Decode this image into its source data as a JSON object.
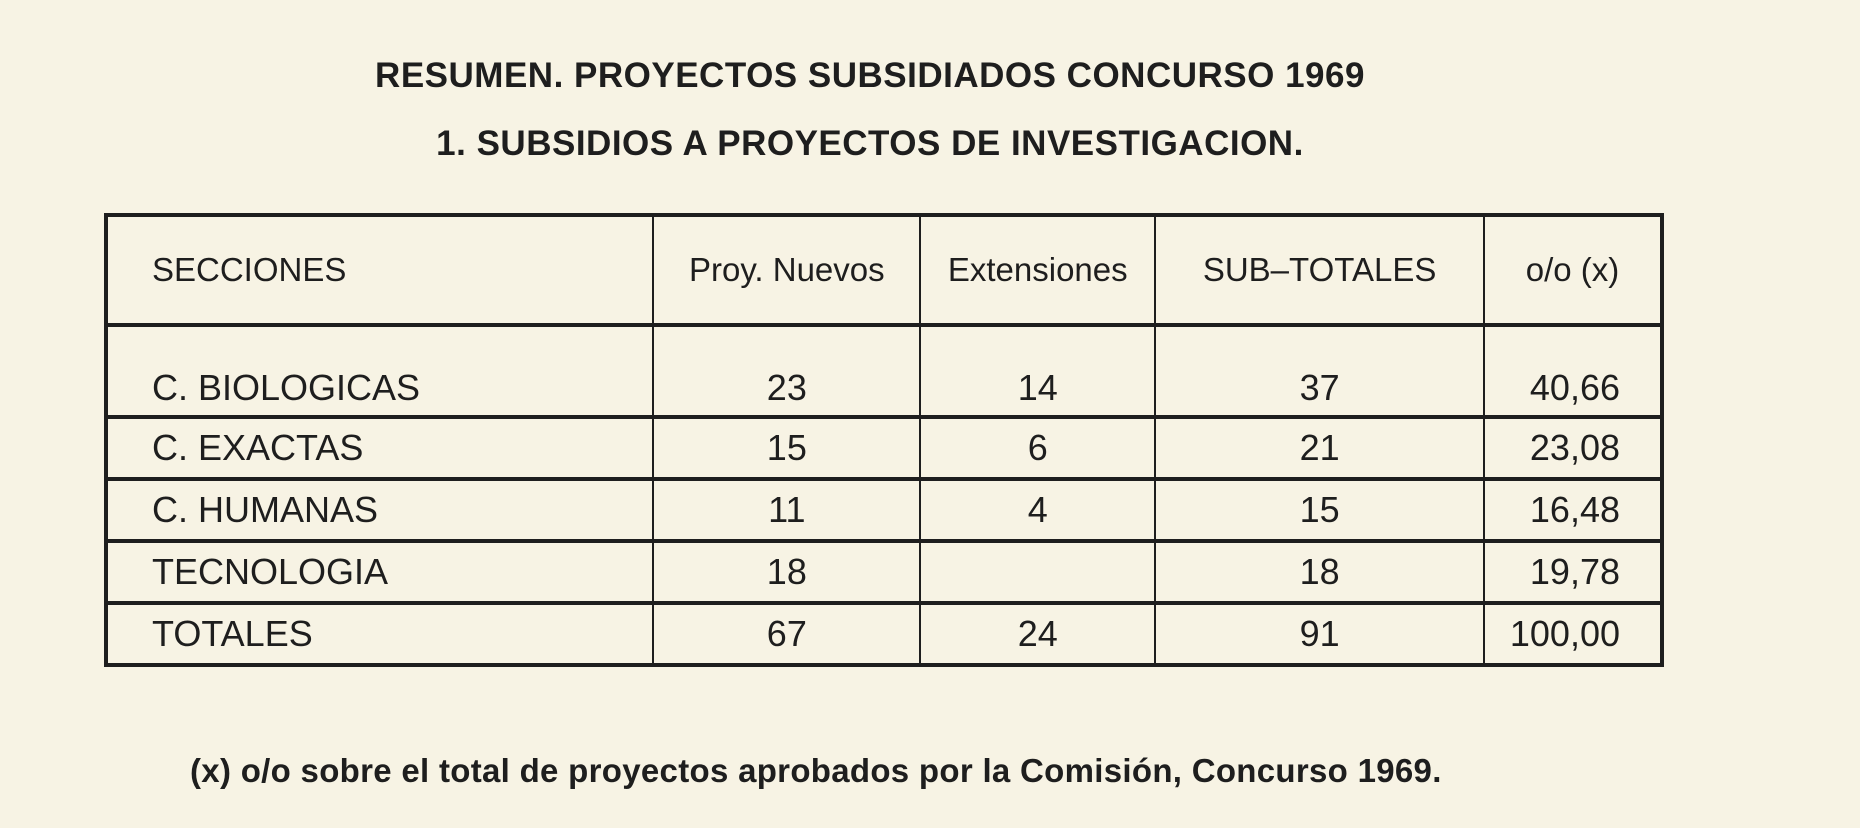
{
  "title": "RESUMEN. PROYECTOS SUBSIDIADOS CONCURSO 1969",
  "subtitle": "1. SUBSIDIOS A PROYECTOS DE INVESTIGACION.",
  "table": {
    "headers": [
      "SECCIONES",
      "Proy. Nuevos",
      "Extensiones",
      "SUB–TOTALES",
      "o/o (x)"
    ],
    "rows": [
      [
        "C. BIOLOGICAS",
        "23",
        "14",
        "37",
        "40,66"
      ],
      [
        "C. EXACTAS",
        "15",
        "6",
        "21",
        "23,08"
      ],
      [
        "C. HUMANAS",
        "11",
        "4",
        "15",
        "16,48"
      ],
      [
        "TECNOLOGIA",
        "18",
        "",
        "18",
        "19,78"
      ],
      [
        "TOTALES",
        "67",
        "24",
        "91",
        "100,00"
      ]
    ]
  },
  "footnote": "(x) o/o sobre el total de proyectos aprobados por la Comisión, Concurso 1969."
}
